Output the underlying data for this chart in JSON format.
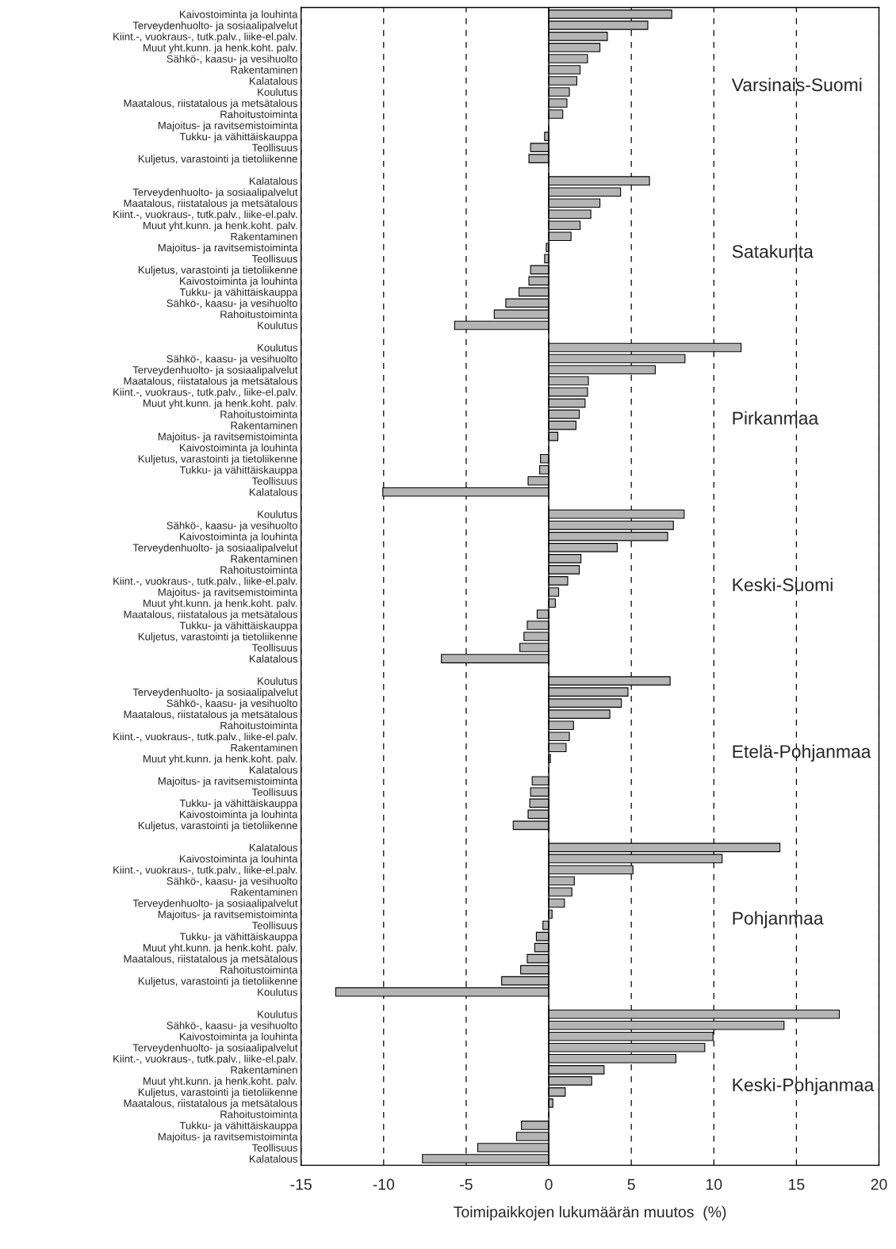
{
  "chart_data": {
    "type": "bar",
    "orientation": "horizontal",
    "xlabel": "Toimipaikkojen lukumäärän muutos  (%)",
    "categories": [
      "Kaivostoiminta ja louhinta",
      "Terveydenhuolto- ja sosiaalipalvelut",
      "Kiint.-, vuokraus-, tutk.palv., liike-el.palv.",
      "Muut yht.kunn. ja henk.koht. palv.",
      "Sähkö-, kaasu- ja vesihuolto",
      "Rakentaminen",
      "Kalatalous",
      "Koulutus",
      "Maatalous, riistatalous ja metsätalous",
      "Rahoitustoiminta",
      "Majoitus- ja ravitsemistoiminta",
      "Tukku- ja vähittäiskauppa",
      "Teollisuus",
      "Kuljetus, varastointi ja tietoliikenne",
      null,
      "Kalatalous",
      "Terveydenhuolto- ja sosiaalipalvelut",
      "Maatalous, riistatalous ja metsätalous",
      "Kiint.-, vuokraus-, tutk.palv., liike-el.palv.",
      "Muut yht.kunn. ja henk.koht. palv.",
      "Rakentaminen",
      "Majoitus- ja ravitsemistoiminta",
      "Teollisuus",
      "Kuljetus, varastointi ja tietoliikenne",
      "Kaivostoiminta ja louhinta",
      "Tukku- ja vähittäiskauppa",
      "Sähkö-, kaasu- ja vesihuolto",
      "Rahoitustoiminta",
      "Koulutus",
      null,
      "Koulutus",
      "Sähkö-, kaasu- ja vesihuolto",
      "Terveydenhuolto- ja sosiaalipalvelut",
      "Maatalous, riistatalous ja metsätalous",
      "Kiint.-, vuokraus-, tutk.palv., liike-el.palv.",
      "Muut yht.kunn. ja henk.koht. palv.",
      "Rahoitustoiminta",
      "Rakentaminen",
      "Majoitus- ja ravitsemistoiminta",
      "Kaivostoiminta ja louhinta",
      "Kuljetus, varastointi ja tietoliikenne",
      "Tukku- ja vähittäiskauppa",
      "Teollisuus",
      "Kalatalous",
      null,
      "Koulutus",
      "Sähkö-, kaasu- ja vesihuolto",
      "Kaivostoiminta ja louhinta",
      "Terveydenhuolto- ja sosiaalipalvelut",
      "Rakentaminen",
      "Rahoitustoiminta",
      "Kiint.-, vuokraus-, tutk.palv., liike-el.palv.",
      "Majoitus- ja ravitsemistoiminta",
      "Muut yht.kunn. ja henk.koht. palv.",
      "Maatalous, riistatalous ja metsätalous",
      "Tukku- ja vähittäiskauppa",
      "Kuljetus, varastointi ja tietoliikenne",
      "Teollisuus",
      "Kalatalous",
      null,
      "Koulutus",
      "Terveydenhuolto- ja sosiaalipalvelut",
      "Sähkö-, kaasu- ja vesihuolto",
      "Maatalous, riistatalous ja metsätalous",
      "Rahoitustoiminta",
      "Kiint.-, vuokraus-, tutk.palv., liike-el.palv.",
      "Rakentaminen",
      "Muut yht.kunn. ja henk.koht. palv.",
      "Kalatalous",
      "Majoitus- ja ravitsemistoiminta",
      "Teollisuus",
      "Tukku- ja vähittäiskauppa",
      "Kaivostoiminta ja louhinta",
      "Kuljetus, varastointi ja tietoliikenne",
      null,
      "Kalatalous",
      "Kaivostoiminta ja louhinta",
      "Kiint.-, vuokraus-, tutk.palv., liike-el.palv.",
      "Sähkö-, kaasu- ja vesihuolto",
      "Rakentaminen",
      "Terveydenhuolto- ja sosiaalipalvelut",
      "Majoitus- ja ravitsemistoiminta",
      "Teollisuus",
      "Tukku- ja vähittäiskauppa",
      "Muut yht.kunn. ja henk.koht. palv.",
      "Maatalous, riistatalous ja metsätalous",
      "Rahoitustoiminta",
      "Kuljetus, varastointi ja tietoliikenne",
      "Koulutus",
      null,
      "Koulutus",
      "Sähkö-, kaasu- ja vesihuolto",
      "Kaivostoiminta ja louhinta",
      "Terveydenhuolto- ja sosiaalipalvelut",
      "Kiint.-, vuokraus-, tutk.palv., liike-el.palv.",
      "Rakentaminen",
      "Muut yht.kunn. ja henk.koht. palv.",
      "Kuljetus, varastointi ja tietoliikenne",
      "Maatalous, riistatalous ja metsätalous",
      "Rahoitustoiminta",
      "Tukku- ja vähittäiskauppa",
      "Majoitus- ja ravitsemistoiminta",
      "Teollisuus",
      "Kalatalous"
    ],
    "series": [
      {
        "color": "#b4b4b4",
        "values": [
          7.45,
          6.0,
          3.55,
          3.1,
          2.35,
          1.9,
          1.7,
          1.25,
          1.1,
          0.85,
          null,
          -0.25,
          -1.1,
          -1.2,
          null,
          6.1,
          4.35,
          3.1,
          2.55,
          1.9,
          1.35,
          -0.15,
          -0.25,
          -1.1,
          -1.2,
          -1.8,
          -2.6,
          -3.3,
          -5.7,
          null,
          11.65,
          8.25,
          6.45,
          2.4,
          2.35,
          2.2,
          1.85,
          1.65,
          0.55,
          null,
          -0.5,
          -0.55,
          -1.25,
          -10.05,
          null,
          8.2,
          7.55,
          7.2,
          4.15,
          1.95,
          1.85,
          1.15,
          0.6,
          0.4,
          -0.7,
          -1.3,
          -1.5,
          -1.75,
          -6.5,
          null,
          7.35,
          4.8,
          4.4,
          3.7,
          1.5,
          1.25,
          1.05,
          0.1,
          null,
          -1.0,
          -1.1,
          -1.15,
          -1.25,
          -2.15,
          null,
          14.0,
          10.5,
          5.1,
          1.55,
          1.4,
          0.95,
          0.2,
          -0.35,
          -0.75,
          -0.85,
          -1.3,
          -1.7,
          -2.85,
          -12.9,
          null,
          17.6,
          14.25,
          9.95,
          9.45,
          7.7,
          3.35,
          2.6,
          1.0,
          0.25,
          null,
          -1.65,
          -1.95,
          -4.3,
          -7.65
        ]
      }
    ],
    "xlim": [
      -15,
      20
    ],
    "xticks": [
      -15,
      -10,
      -5,
      0,
      5,
      10,
      15,
      20
    ],
    "grid": "x",
    "annotations": [
      "Varsinais-Suomi",
      "Satakunta",
      "Pirkanmaa",
      "Keski-Suomi",
      "Etelä-Pohjanmaa",
      "Pohjanmaa",
      "Keski-Pohjanmaa"
    ]
  }
}
